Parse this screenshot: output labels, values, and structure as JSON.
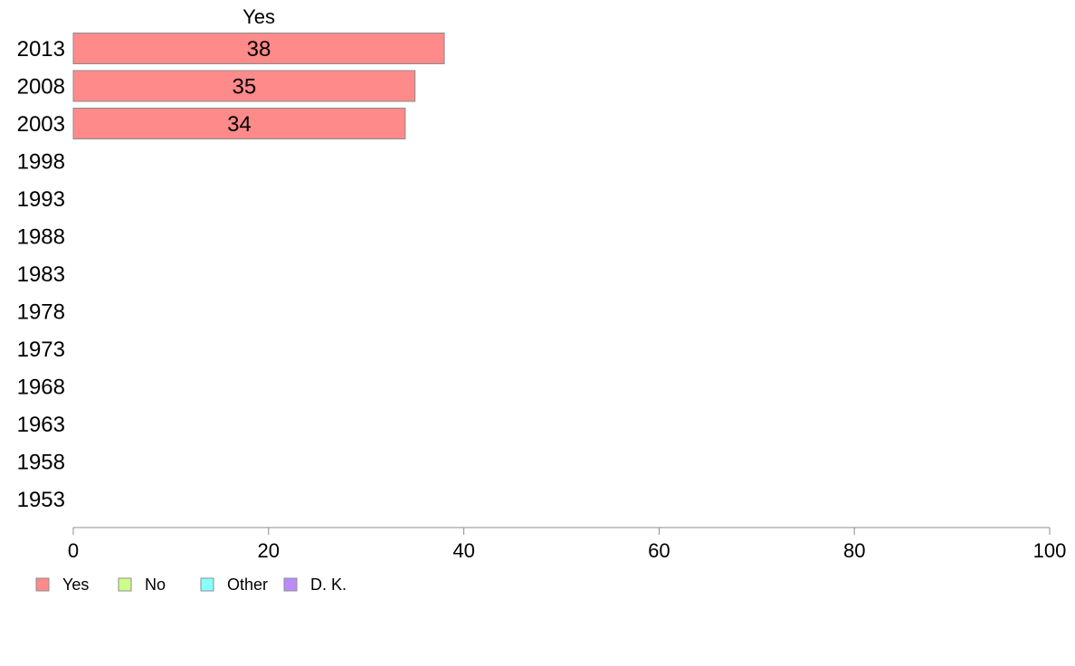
{
  "chart_data": {
    "type": "bar",
    "orientation": "horizontal",
    "title": "",
    "xlabel": "",
    "ylabel": "",
    "xlim": [
      0,
      100
    ],
    "x_ticks": [
      0,
      20,
      40,
      60,
      80,
      100
    ],
    "grid": false,
    "legend_position": "bottom-left",
    "categories": [
      "2013",
      "2008",
      "2003",
      "1998",
      "1993",
      "1988",
      "1983",
      "1978",
      "1973",
      "1968",
      "1963",
      "1958",
      "1953"
    ],
    "series_header": "Yes",
    "series": [
      {
        "name": "Yes",
        "color": "#ff8a8a",
        "values": [
          38,
          35,
          34,
          null,
          null,
          null,
          null,
          null,
          null,
          null,
          null,
          null,
          null
        ]
      },
      {
        "name": "No",
        "color": "#ccff8a",
        "values": [
          null,
          null,
          null,
          null,
          null,
          null,
          null,
          null,
          null,
          null,
          null,
          null,
          null
        ]
      },
      {
        "name": "Other",
        "color": "#8affff",
        "values": [
          null,
          null,
          null,
          null,
          null,
          null,
          null,
          null,
          null,
          null,
          null,
          null,
          null
        ]
      },
      {
        "name": "D. K.",
        "color": "#bb8aff",
        "values": [
          null,
          null,
          null,
          null,
          null,
          null,
          null,
          null,
          null,
          null,
          null,
          null,
          null
        ]
      }
    ],
    "legend": [
      "Yes",
      "No",
      "Other",
      "D. K."
    ]
  }
}
